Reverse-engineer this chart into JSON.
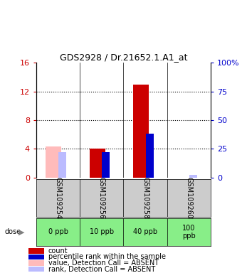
{
  "title": "GDS2928 / Dr.21652.1.A1_at",
  "samples": [
    "GSM109254",
    "GSM109256",
    "GSM109258",
    "GSM109260"
  ],
  "doses": [
    "0 ppb",
    "10 ppb",
    "40 ppb",
    "100\nppb"
  ],
  "count_values": [
    0,
    4,
    13,
    0
  ],
  "rank_values": [
    0,
    22,
    38,
    0
  ],
  "count_absent": [
    4.3,
    0,
    0,
    0
  ],
  "rank_absent": [
    22,
    0,
    0,
    2
  ],
  "ylim_left": [
    0,
    16
  ],
  "ylim_right": [
    0,
    100
  ],
  "yticks_left": [
    0,
    4,
    8,
    12,
    16
  ],
  "yticks_right": [
    0,
    25,
    50,
    75,
    100
  ],
  "color_count": "#cc0000",
  "color_rank": "#0000cc",
  "color_count_absent": "#ffbbbb",
  "color_rank_absent": "#bbbbff",
  "left_tick_color": "#cc0000",
  "right_tick_color": "#0000cc",
  "sample_area_color": "#cccccc",
  "dose_area_color": "#88ee88",
  "legend_items": [
    [
      "#cc0000",
      "count"
    ],
    [
      "#0000cc",
      "percentile rank within the sample"
    ],
    [
      "#ffbbbb",
      "value, Detection Call = ABSENT"
    ],
    [
      "#bbbbff",
      "rank, Detection Call = ABSENT"
    ]
  ]
}
